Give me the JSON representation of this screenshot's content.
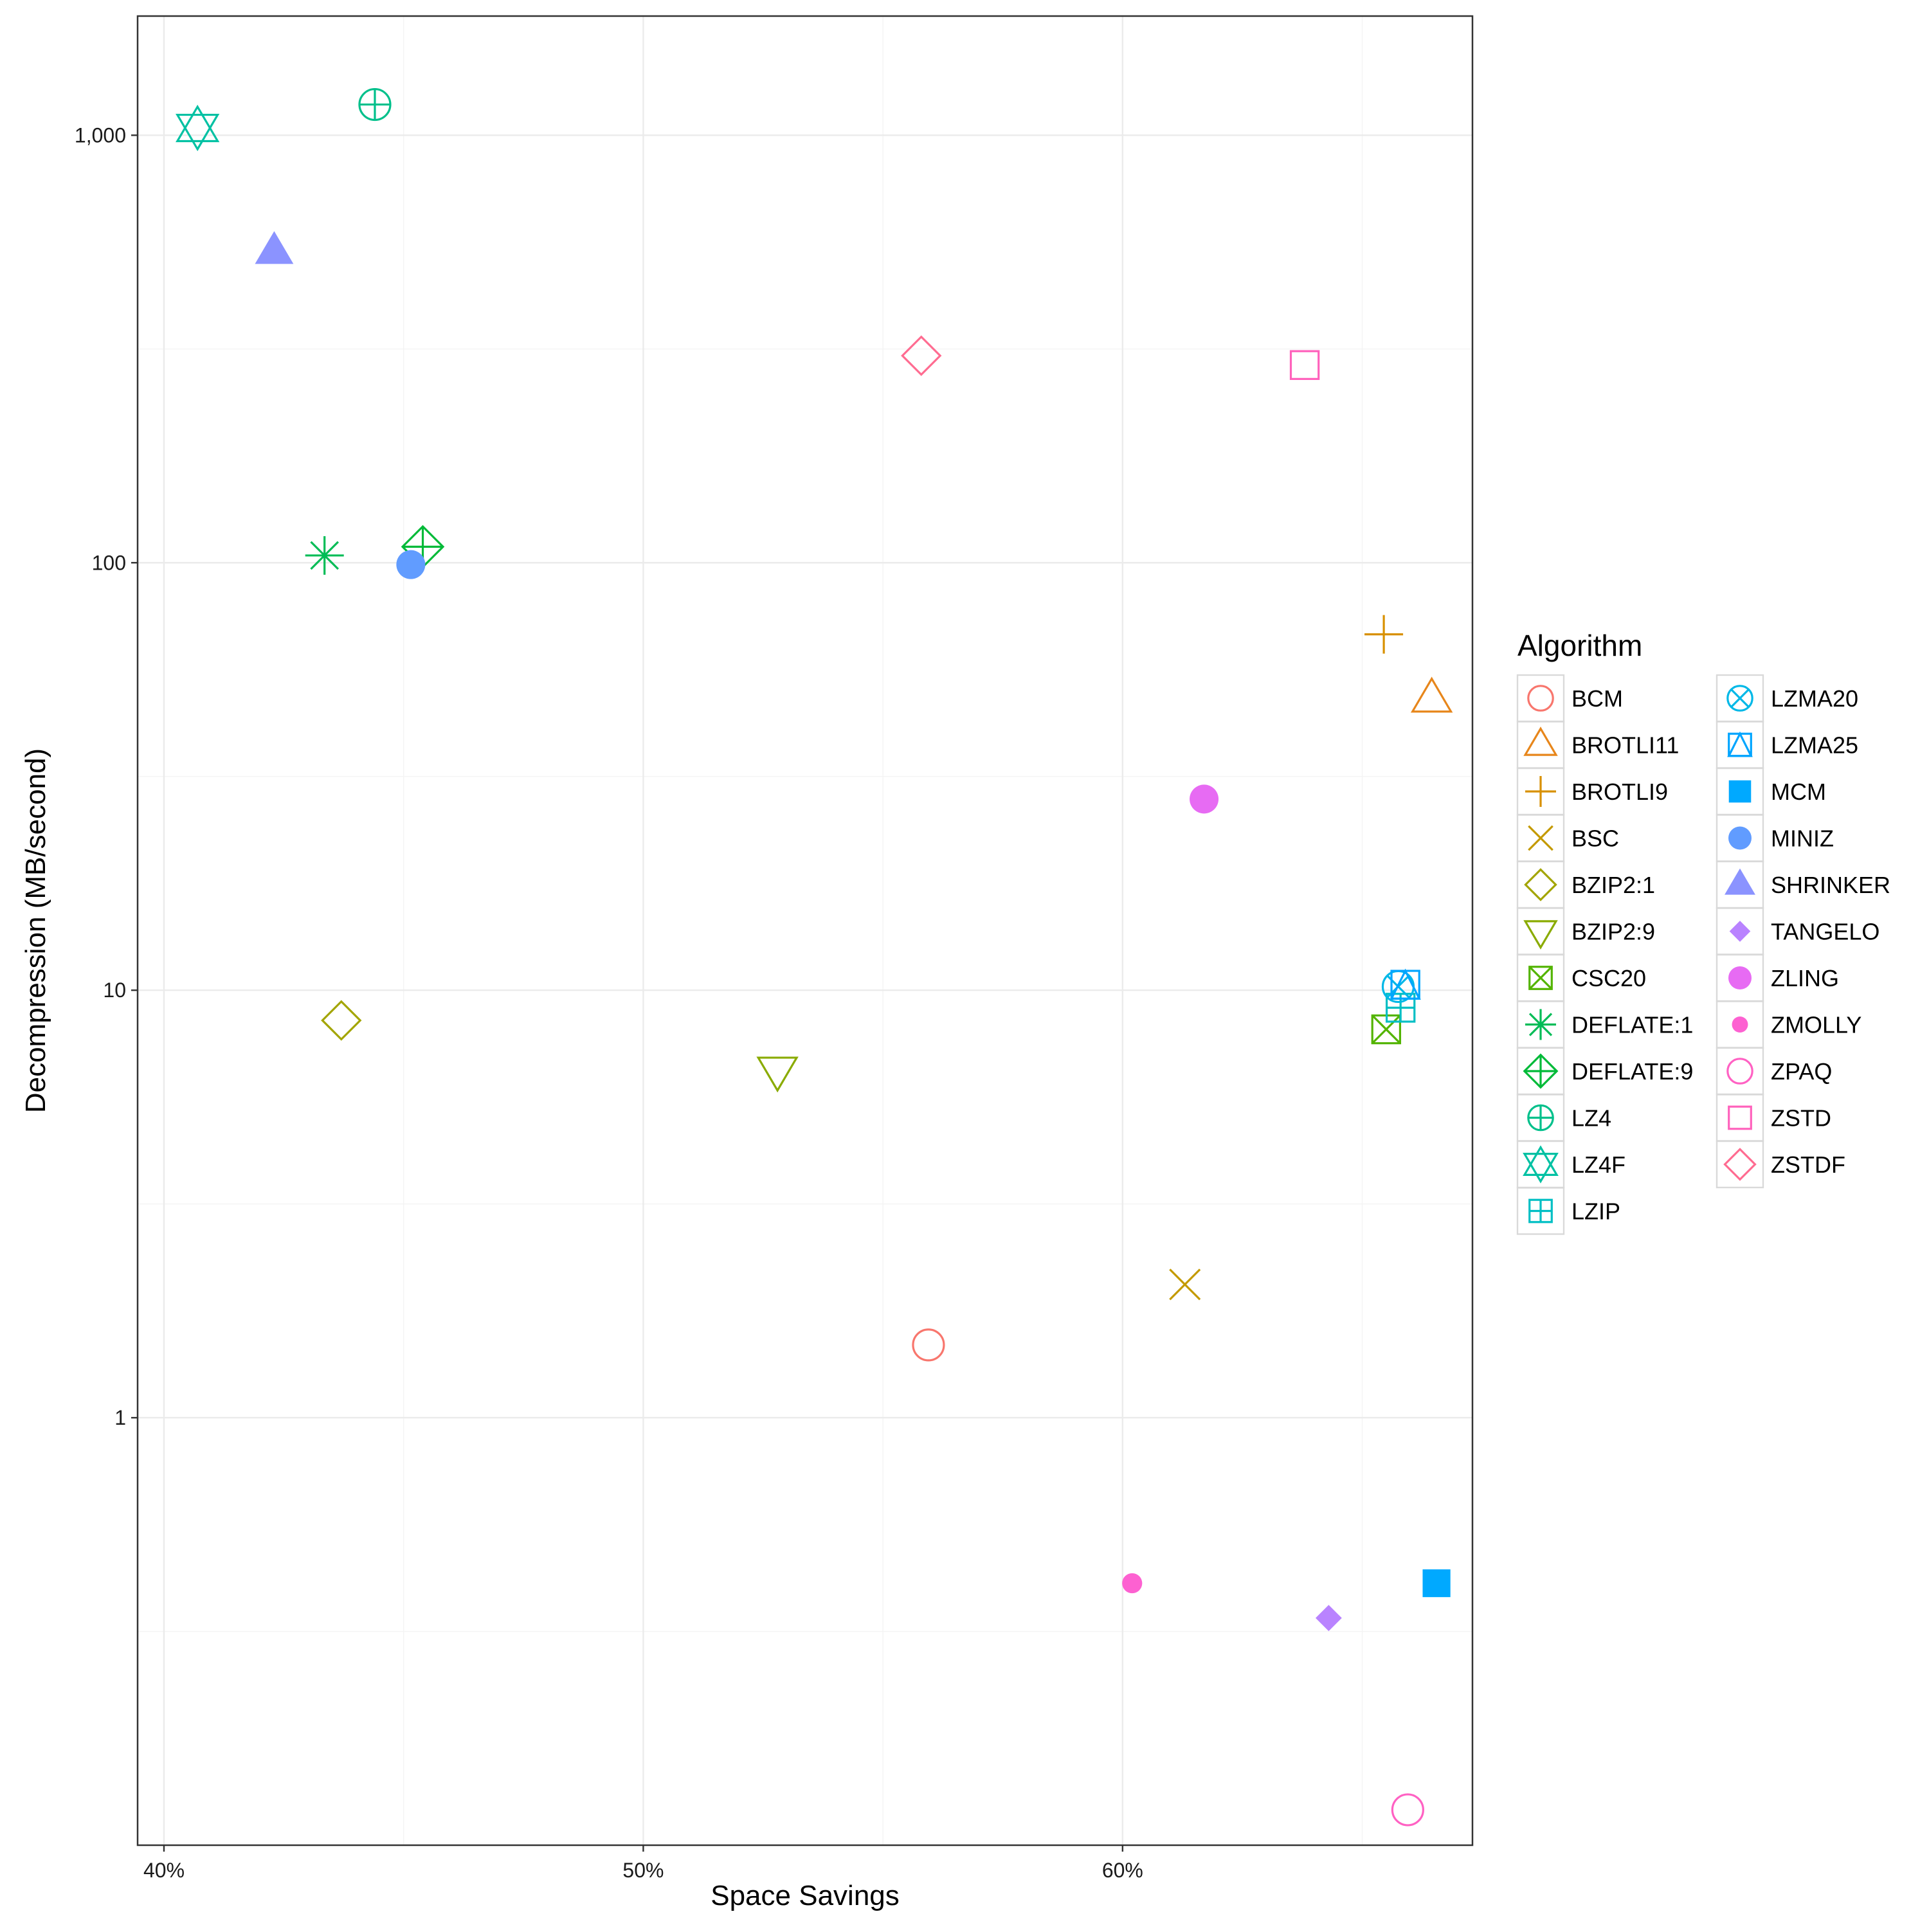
{
  "chart_data": {
    "type": "scatter",
    "title": "",
    "xlabel": "Space Savings",
    "ylabel": "Decompression (MB/second)",
    "x_scale": "linear",
    "y_scale": "log10",
    "xlim": [
      39.45,
      67.3
    ],
    "ylim": [
      0.1,
      1900
    ],
    "x_ticks": [
      {
        "value": 40,
        "label": "40%"
      },
      {
        "value": 50,
        "label": "50%"
      },
      {
        "value": 60,
        "label": "60%"
      }
    ],
    "y_ticks": [
      {
        "value": 1,
        "label": "1"
      },
      {
        "value": 10,
        "label": "10"
      },
      {
        "value": 100,
        "label": "100"
      },
      {
        "value": 1000,
        "label": "1,000"
      }
    ],
    "grid": true,
    "legend": {
      "title": "Algorithm",
      "position": "right",
      "columns": 2
    },
    "series": [
      {
        "name": "BCM",
        "color": "#F8766D",
        "shape": "circle-open",
        "x": 55.95,
        "y": 1.48
      },
      {
        "name": "BROTLI11",
        "color": "#E7861B",
        "shape": "triangle-open",
        "x": 66.45,
        "y": 48
      },
      {
        "name": "BROTLI9",
        "color": "#D89000",
        "shape": "plus",
        "x": 65.45,
        "y": 68
      },
      {
        "name": "BSC",
        "color": "#C49A00",
        "shape": "cross",
        "x": 61.3,
        "y": 2.05
      },
      {
        "name": "BZIP2:1",
        "color": "#A3A500",
        "shape": "diamond-open",
        "x": 43.7,
        "y": 8.5
      },
      {
        "name": "BZIP2:9",
        "color": "#8AAB00",
        "shape": "triangle-down-open",
        "x": 52.8,
        "y": 6.5
      },
      {
        "name": "CSC20",
        "color": "#53B400",
        "shape": "square-cross",
        "x": 65.5,
        "y": 8.1
      },
      {
        "name": "DEFLATE:1",
        "color": "#00BC56",
        "shape": "asterisk",
        "x": 43.35,
        "y": 104
      },
      {
        "name": "DEFLATE:9",
        "color": "#00BA38",
        "shape": "diamond-plus",
        "x": 45.4,
        "y": 109
      },
      {
        "name": "LZ4",
        "color": "#00C08B",
        "shape": "circle-plus",
        "x": 44.4,
        "y": 1180
      },
      {
        "name": "LZ4F",
        "color": "#00C1A3",
        "shape": "star-of-david",
        "x": 40.7,
        "y": 1040
      },
      {
        "name": "LZIP",
        "color": "#00BFC4",
        "shape": "square-plus",
        "x": 65.8,
        "y": 9.1
      },
      {
        "name": "LZMA20",
        "color": "#00B8E7",
        "shape": "circle-cross",
        "x": 65.75,
        "y": 10.2
      },
      {
        "name": "LZMA25",
        "color": "#00A5FF",
        "shape": "square-triangle",
        "x": 65.9,
        "y": 10.3
      },
      {
        "name": "MCM",
        "color": "#00A9FF",
        "shape": "square-filled",
        "x": 66.55,
        "y": 0.41
      },
      {
        "name": "MINIZ",
        "color": "#619CFF",
        "shape": "circle-filled",
        "x": 45.15,
        "y": 99
      },
      {
        "name": "SHRINKER",
        "color": "#8B93FF",
        "shape": "triangle-filled",
        "x": 42.3,
        "y": 535
      },
      {
        "name": "TANGELO",
        "color": "#B983FF",
        "shape": "diamond-filled",
        "x": 64.3,
        "y": 0.34
      },
      {
        "name": "ZLING",
        "color": "#E76BF3",
        "shape": "circle-filled",
        "x": 61.7,
        "y": 28
      },
      {
        "name": "ZMOLLY",
        "color": "#FD61D1",
        "shape": "circle-small",
        "x": 60.2,
        "y": 0.41
      },
      {
        "name": "ZPAQ",
        "color": "#FF61C3",
        "shape": "circle-open",
        "x": 65.95,
        "y": 0.121
      },
      {
        "name": "ZSTD",
        "color": "#FF62BC",
        "shape": "square-open",
        "x": 63.8,
        "y": 290
      },
      {
        "name": "ZSTDF",
        "color": "#FF6C91",
        "shape": "diamond-open",
        "x": 55.8,
        "y": 305
      }
    ]
  }
}
